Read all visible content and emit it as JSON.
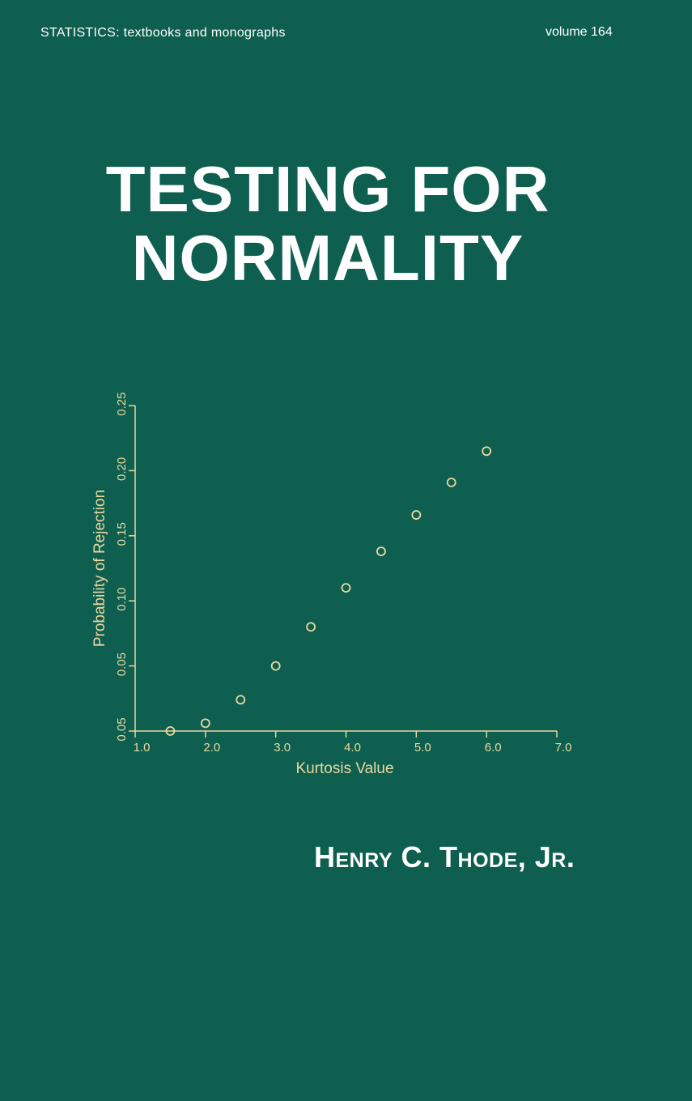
{
  "cover": {
    "series": "STATISTICS:  textbooks and monographs",
    "volume": "volume 164",
    "title_line1": "TESTING FOR",
    "title_line2": "NORMALITY",
    "author": "Henry C. Thode, Jr."
  },
  "colors": {
    "background": "#0e5f4f",
    "text": "#ffffff",
    "chart": "#ead8a0"
  },
  "chart_data": {
    "type": "scatter",
    "xlabel": "Kurtosis Value",
    "ylabel": "Probability of Rejection",
    "xlim": [
      1.0,
      7.0
    ],
    "ylim": [
      0.0,
      0.25
    ],
    "x_ticks": [
      "1.0",
      "2.0",
      "3.0",
      "4.0",
      "5.0",
      "6.0",
      "7.0"
    ],
    "y_ticks": [
      "0.05",
      "0.05",
      "0.10",
      "0.15",
      "0.20",
      "0.25"
    ],
    "grid": false,
    "x": [
      1.5,
      2.0,
      2.5,
      3.0,
      3.5,
      4.0,
      4.5,
      5.0,
      5.5,
      6.0
    ],
    "y": [
      0.0,
      0.006,
      0.024,
      0.05,
      0.08,
      0.11,
      0.138,
      0.166,
      0.191,
      0.215
    ]
  }
}
